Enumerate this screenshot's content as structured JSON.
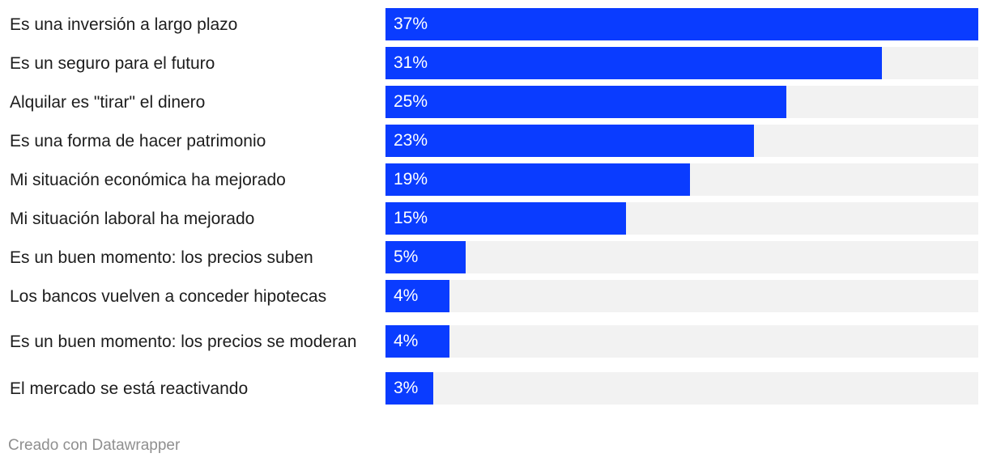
{
  "chart_data": {
    "type": "bar",
    "orientation": "horizontal",
    "categories": [
      "Es una inversión a largo plazo",
      "Es un seguro para el futuro",
      "Alquilar es \"tirar\" el dinero",
      "Es una forma de hacer patrimonio",
      "Mi situación económica ha mejorado",
      "Mi situación laboral ha mejorado",
      "Es un buen momento: los precios suben",
      "Los bancos vuelven a conceder hipotecas",
      "Es un buen momento: los precios se moderan",
      "El mercado se está reactivando"
    ],
    "values": [
      37,
      31,
      25,
      23,
      19,
      15,
      5,
      4,
      4,
      3
    ],
    "value_labels": [
      "37%",
      "31%",
      "25%",
      "23%",
      "19%",
      "15%",
      "5%",
      "4%",
      "4%",
      "3%"
    ],
    "xlim": [
      0,
      37
    ],
    "bar_color": "#0a3cff",
    "track_color": "#f2f2f2",
    "grid": false,
    "legend": "none"
  },
  "footer": {
    "credit": "Creado con Datawrapper"
  }
}
